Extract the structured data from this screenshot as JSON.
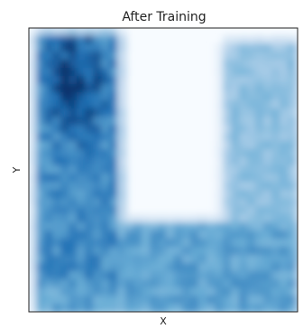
{
  "chart_data": {
    "type": "heatmap",
    "title": "After Training",
    "xlabel": "X",
    "ylabel": "Y",
    "colormap": "Blues",
    "grid": false,
    "ticks": false,
    "regions": [
      {
        "name": "left-arm",
        "x_range": [
          0.04,
          0.3
        ],
        "y_range": [
          0.12,
          0.97
        ],
        "peak_x": 0.16,
        "peak_y": 0.82,
        "peak_density": 1.0
      },
      {
        "name": "bottom-bar",
        "x_range": [
          0.04,
          0.97
        ],
        "y_range": [
          0.03,
          0.3
        ],
        "peak_density": 0.75
      },
      {
        "name": "right-arm",
        "x_range": [
          0.74,
          0.97
        ],
        "y_range": [
          0.12,
          0.94
        ],
        "peak_density": 0.55
      }
    ]
  }
}
